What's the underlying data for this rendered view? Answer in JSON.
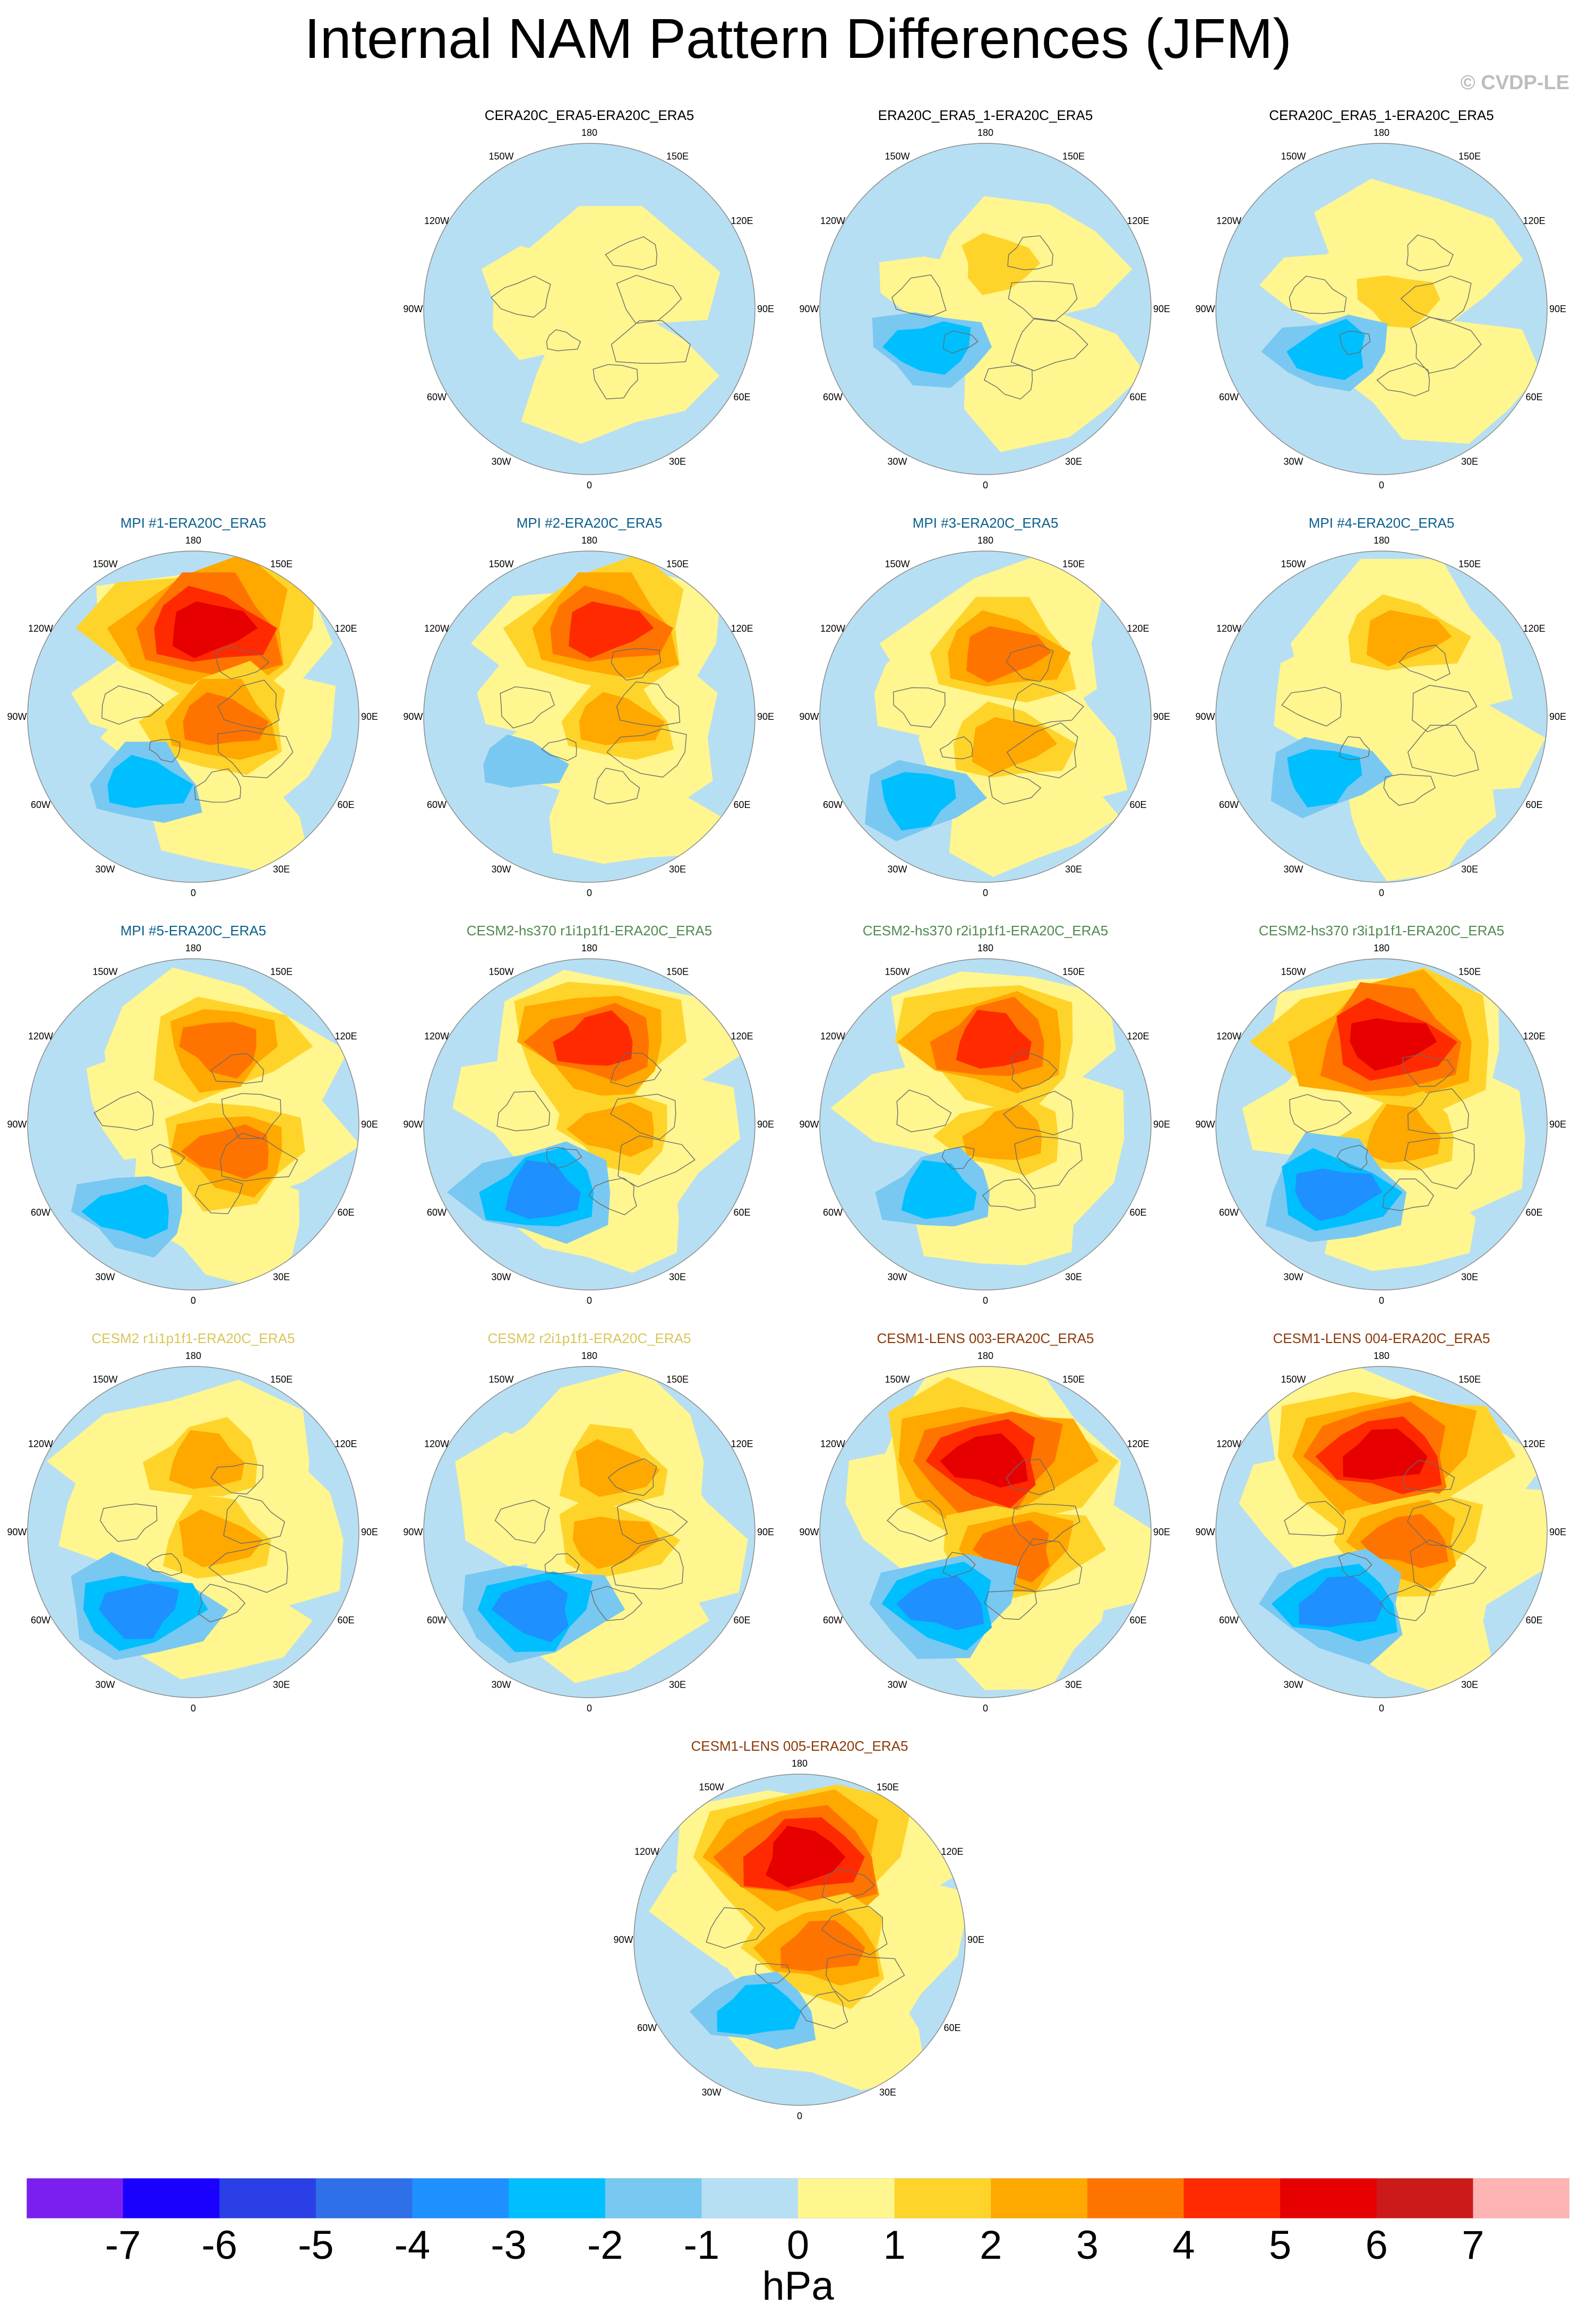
{
  "page": {
    "title": "Internal NAM Pattern Differences (JFM)",
    "credit": "© CVDP-LE",
    "units": "hPa"
  },
  "longitude_labels": [
    "180",
    "150E",
    "120E",
    "90E",
    "60E",
    "30E",
    "0",
    "30W",
    "60W",
    "90W",
    "120W",
    "150W"
  ],
  "colors": {
    "levels": [
      -7,
      -6,
      -5,
      -4,
      -3,
      -2,
      -1,
      0,
      1,
      2,
      3,
      4,
      5,
      6,
      7
    ],
    "fills": [
      "#7b1ff0",
      "#1a00ff",
      "#2a3fe6",
      "#2f6fe8",
      "#1e90ff",
      "#00bfff",
      "#79c8f2",
      "#b7dff3",
      "#fff68f",
      "#ffd42a",
      "#ffa800",
      "#ff7400",
      "#ff2a00",
      "#e60000",
      "#cc1a1a",
      "#ffb4b4"
    ],
    "title_colors": {
      "reanalysis": "#000000",
      "mpi": "#0b5f8c",
      "cesm2_hs370": "#4f8a4f",
      "cesm2": "#d9c65a",
      "cesm1_lens": "#8b3a0a"
    }
  },
  "panels": [
    {
      "title": "CERA20C_ERA5-ERA20C_ERA5",
      "group": "reanalysis",
      "scheme": "ra1",
      "features": []
    },
    {
      "title": "ERA20C_ERA5_1-ERA20C_ERA5",
      "group": "reanalysis",
      "scheme": "ra2",
      "features": [
        {
          "lon": 165,
          "lat": 70,
          "level": 1
        },
        {
          "lon": -55,
          "lat": 62,
          "level": -2
        }
      ]
    },
    {
      "title": "CERA20C_ERA5_1-ERA20C_ERA5",
      "group": "reanalysis",
      "scheme": "ra3",
      "features": [
        {
          "lon": 120,
          "lat": 82,
          "level": 1
        },
        {
          "lon": -50,
          "lat": 62,
          "level": -2
        }
      ]
    },
    {
      "title": "MPI #1-ERA20C_ERA5",
      "group": "mpi",
      "scheme": "mpi",
      "features": [
        {
          "lon": 170,
          "lat": 52,
          "level": 5
        },
        {
          "lon": 80,
          "lat": 78,
          "level": 3
        },
        {
          "lon": -35,
          "lat": 55,
          "level": -2
        }
      ]
    },
    {
      "title": "MPI #2-ERA20C_ERA5",
      "group": "mpi",
      "scheme": "mpi",
      "features": [
        {
          "lon": 170,
          "lat": 52,
          "level": 4
        },
        {
          "lon": 80,
          "lat": 78,
          "level": 2
        },
        {
          "lon": -55,
          "lat": 55,
          "level": -1
        }
      ]
    },
    {
      "title": "MPI #3-ERA20C_ERA5",
      "group": "mpi",
      "scheme": "mpi",
      "features": [
        {
          "lon": 165,
          "lat": 62,
          "level": 3
        },
        {
          "lon": 40,
          "lat": 75,
          "level": 2
        },
        {
          "lon": -40,
          "lat": 45,
          "level": -2
        }
      ]
    },
    {
      "title": "MPI #4-ERA20C_ERA5",
      "group": "mpi",
      "scheme": "mpi",
      "features": [
        {
          "lon": 165,
          "lat": 55,
          "level": 2
        },
        {
          "lon": -45,
          "lat": 55,
          "level": -2
        }
      ]
    },
    {
      "title": "MPI #5-ERA20C_ERA5",
      "group": "mpi",
      "scheme": "mpi",
      "features": [
        {
          "lon": 160,
          "lat": 55,
          "level": 3
        },
        {
          "lon": 55,
          "lat": 70,
          "level": 3
        },
        {
          "lon": -35,
          "lat": 45,
          "level": -2
        }
      ]
    },
    {
      "title": "CESM2-hs370 r1i1p1f1-ERA20C_ERA5",
      "group": "cesm2_hs370",
      "scheme": "hs",
      "features": [
        {
          "lon": 175,
          "lat": 55,
          "level": 4
        },
        {
          "lon": 80,
          "lat": 78,
          "level": 2
        },
        {
          "lon": -35,
          "lat": 55,
          "level": -3
        }
      ]
    },
    {
      "title": "CESM2-hs370 r2i1p1f1-ERA20C_ERA5",
      "group": "cesm2_hs370",
      "scheme": "hs",
      "features": [
        {
          "lon": 175,
          "lat": 55,
          "level": 4
        },
        {
          "lon": 60,
          "lat": 80,
          "level": 2
        },
        {
          "lon": -35,
          "lat": 55,
          "level": -2
        }
      ]
    },
    {
      "title": "CESM2-hs370 r3i1p1f1-ERA20C_ERA5",
      "group": "cesm2_hs370",
      "scheme": "hs",
      "features": [
        {
          "lon": 175,
          "lat": 55,
          "level": 5
        },
        {
          "lon": 60,
          "lat": 80,
          "level": 2
        },
        {
          "lon": -35,
          "lat": 55,
          "level": -3
        }
      ]
    },
    {
      "title": "CESM2 r1i1p1f1-ERA20C_ERA5",
      "group": "cesm2",
      "scheme": "c2",
      "features": [
        {
          "lon": 170,
          "lat": 60,
          "level": 2
        },
        {
          "lon": 70,
          "lat": 80,
          "level": 2
        },
        {
          "lon": -35,
          "lat": 50,
          "level": -3
        }
      ]
    },
    {
      "title": "CESM2 r2i1p1f1-ERA20C_ERA5",
      "group": "cesm2",
      "scheme": "c2",
      "features": [
        {
          "lon": 160,
          "lat": 62,
          "level": 2
        },
        {
          "lon": 70,
          "lat": 80,
          "level": 2
        },
        {
          "lon": -35,
          "lat": 50,
          "level": -3
        }
      ]
    },
    {
      "title": "CESM1-LENS 003-ERA20C_ERA5",
      "group": "cesm1_lens",
      "scheme": "c1",
      "features": [
        {
          "lon": 178,
          "lat": 60,
          "level": 5
        },
        {
          "lon": 60,
          "lat": 75,
          "level": 3
        },
        {
          "lon": -30,
          "lat": 55,
          "level": -3
        }
      ]
    },
    {
      "title": "CESM1-LENS 004-ERA20C_ERA5",
      "group": "cesm1_lens",
      "scheme": "c1",
      "features": [
        {
          "lon": 178,
          "lat": 58,
          "level": 5
        },
        {
          "lon": 70,
          "lat": 78,
          "level": 3
        },
        {
          "lon": -30,
          "lat": 55,
          "level": -3
        }
      ]
    },
    {
      "title": "CESM1-LENS 005-ERA20C_ERA5",
      "group": "cesm1_lens",
      "scheme": "c1",
      "features": [
        {
          "lon": 178,
          "lat": 55,
          "level": 5
        },
        {
          "lon": 70,
          "lat": 80,
          "level": 3
        },
        {
          "lon": -30,
          "lat": 55,
          "level": -2
        }
      ]
    }
  ]
}
